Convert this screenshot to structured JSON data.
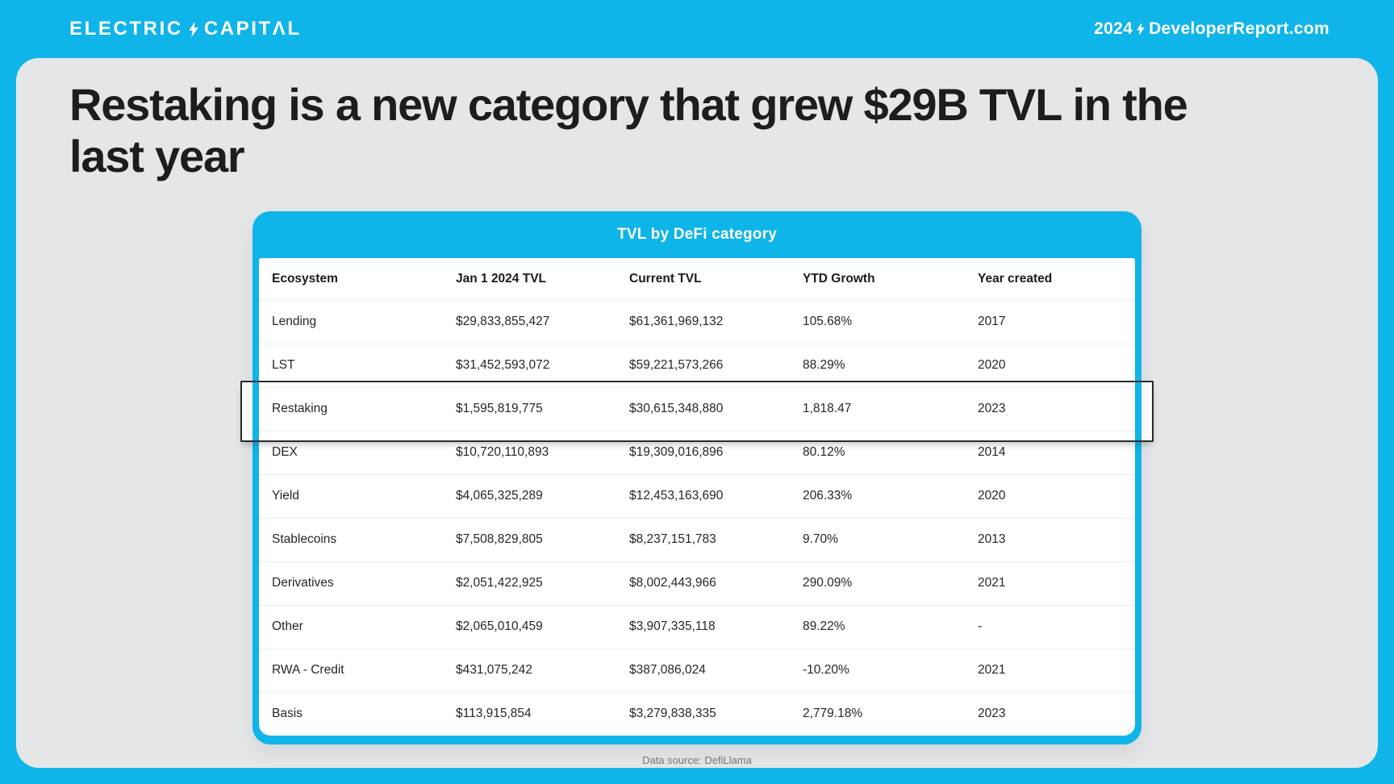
{
  "header": {
    "logo": {
      "word1": "ELECTRIC",
      "word2": "CAPITΛL"
    },
    "report_url": {
      "year": "2024",
      "site": "DeveloperReport.com"
    }
  },
  "heading": {
    "full": "Restaking is a new category that grew $29B TVL in the last year",
    "line1": "Restaking is a new category that grew $29B TVL in the",
    "line2": "last year"
  },
  "chart_data": {
    "type": "table",
    "title": "TVL by DeFi category",
    "columns": [
      "Ecosystem",
      "Jan 1 2024 TVL",
      "Current TVL",
      "YTD Growth",
      "Year created"
    ],
    "rows": [
      [
        "Lending",
        "$29,833,855,427",
        "$61,361,969,132",
        "105.68%",
        "2017"
      ],
      [
        "LST",
        "$31,452,593,072",
        "$59,221,573,266",
        "88.29%",
        "2020"
      ],
      [
        "Restaking",
        "$1,595,819,775",
        "$30,615,348,880",
        "1,818.47",
        "2023"
      ],
      [
        "DEX",
        "$10,720,110,893",
        "$19,309,016,896",
        "80.12%",
        "2014"
      ],
      [
        "Yield",
        "$4,065,325,289",
        "$12,453,163,690",
        "206.33%",
        "2020"
      ],
      [
        "Stablecoins",
        "$7,508,829,805",
        "$8,237,151,783",
        "9.70%",
        "2013"
      ],
      [
        "Derivatives",
        "$2,051,422,925",
        "$8,002,443,966",
        "290.09%",
        "2021"
      ],
      [
        "Other",
        "$2,065,010,459",
        "$3,907,335,118",
        "89.22%",
        "-"
      ],
      [
        "RWA - Credit",
        "$431,075,242",
        "$387,086,024",
        "-10.20%",
        "2021"
      ],
      [
        "Basis",
        "$113,915,854",
        "$3,279,838,335",
        "2,779.18%",
        "2023"
      ]
    ],
    "highlighted_row": "Restaking"
  },
  "footer": {
    "text": "Data source: DefiLlama"
  },
  "colors": {
    "accent_cyan": "#0fb4e9",
    "card_background": "#e5e6e8",
    "heading_text": "#1d1d1f",
    "table_text": "#26262a",
    "row_divider": "#ececee",
    "highlight_border": "#2a2a2e",
    "footer_text": "#77787b",
    "white": "#ffffff"
  }
}
